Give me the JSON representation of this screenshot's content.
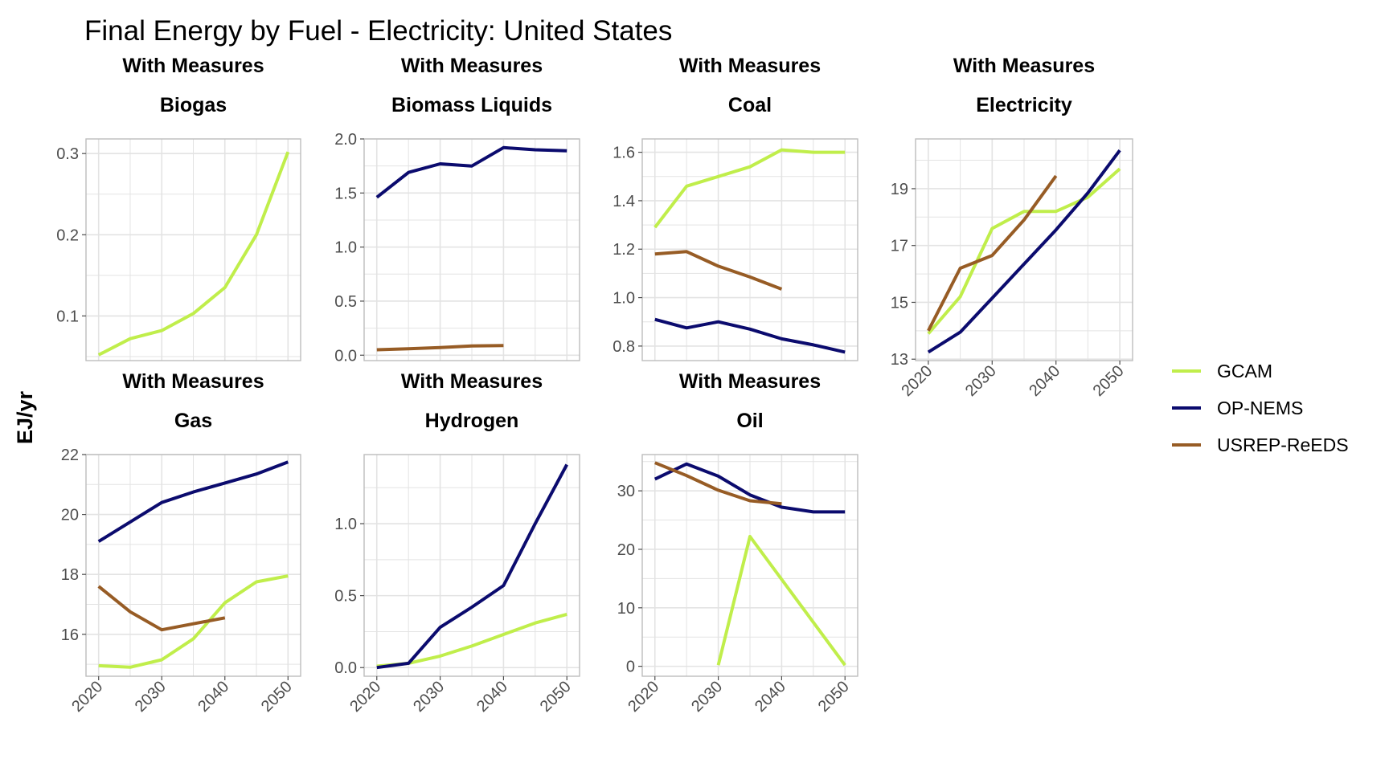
{
  "title": "Final Energy by Fuel - Electricity: United States",
  "colors": {
    "GCAM": "#c0ee4b",
    "OP-NEMS": "#0b0b6e",
    "USREP-ReEDS": "#975c25",
    "grid": "#e3e3e3",
    "panel_border": "#bdbdbd",
    "tick_text": "#4d4d4d"
  },
  "chart_data": {
    "type": "line",
    "title": "Final Energy by Fuel - Electricity: United States",
    "ylabel": "EJ/yr",
    "xlabel": "",
    "grid": true,
    "legend": {
      "placement": "right",
      "entries": [
        "GCAM",
        "OP-NEMS",
        "USREP-ReEDS"
      ]
    },
    "panels": [
      {
        "strip_top": "With Measures",
        "strip_bottom": "Biogas",
        "xlim": [
          2018,
          2052
        ],
        "ylim": [
          0.045,
          0.318
        ],
        "yticks": [
          0.1,
          0.2,
          0.3
        ],
        "ytick_labels": [
          "0.1",
          "0.2",
          "0.3"
        ],
        "show_x_ticks": false,
        "series": [
          {
            "name": "GCAM",
            "x": [
              2020,
              2025,
              2030,
              2035,
              2040,
              2045,
              2050
            ],
            "y": [
              0.052,
              0.072,
              0.082,
              0.103,
              0.135,
              0.2,
              0.302
            ]
          }
        ]
      },
      {
        "strip_top": "With Measures",
        "strip_bottom": "Biomass Liquids",
        "xlim": [
          2018,
          2052
        ],
        "ylim": [
          -0.05,
          2.0
        ],
        "yticks": [
          0.0,
          0.5,
          1.0,
          1.5,
          2.0
        ],
        "ytick_labels": [
          "0.0",
          "0.5",
          "1.0",
          "1.5",
          "2.0"
        ],
        "show_x_ticks": false,
        "series": [
          {
            "name": "OP-NEMS",
            "x": [
              2020,
              2025,
              2030,
              2035,
              2040,
              2045,
              2050
            ],
            "y": [
              1.46,
              1.69,
              1.77,
              1.75,
              1.92,
              1.9,
              1.89
            ]
          },
          {
            "name": "USREP-ReEDS",
            "x": [
              2020,
              2025,
              2030,
              2035,
              2040
            ],
            "y": [
              0.05,
              0.06,
              0.07,
              0.085,
              0.09
            ]
          }
        ]
      },
      {
        "strip_top": "With Measures",
        "strip_bottom": "Coal",
        "xlim": [
          2018,
          2052
        ],
        "ylim": [
          0.74,
          1.655
        ],
        "yticks": [
          0.8,
          1.0,
          1.2,
          1.4,
          1.6
        ],
        "ytick_labels": [
          "0.8",
          "1.0",
          "1.2",
          "1.4",
          "1.6"
        ],
        "show_x_ticks": false,
        "series": [
          {
            "name": "GCAM",
            "x": [
              2020,
              2025,
              2030,
              2035,
              2040,
              2045,
              2050
            ],
            "y": [
              1.29,
              1.46,
              1.5,
              1.54,
              1.61,
              1.6,
              1.6
            ]
          },
          {
            "name": "OP-NEMS",
            "x": [
              2020,
              2025,
              2030,
              2035,
              2040,
              2045,
              2050
            ],
            "y": [
              0.91,
              0.875,
              0.9,
              0.87,
              0.83,
              0.805,
              0.775
            ]
          },
          {
            "name": "USREP-ReEDS",
            "x": [
              2020,
              2025,
              2030,
              2035,
              2040
            ],
            "y": [
              1.18,
              1.19,
              1.13,
              1.085,
              1.035
            ]
          }
        ]
      },
      {
        "strip_top": "With Measures",
        "strip_bottom": "Electricity",
        "xlim": [
          2018,
          2052
        ],
        "ylim": [
          12.95,
          20.75
        ],
        "yticks": [
          13,
          15,
          17,
          19
        ],
        "ytick_labels": [
          "13",
          "15",
          "17",
          "19"
        ],
        "show_x_ticks": true,
        "xticks": [
          2020,
          2030,
          2040,
          2050
        ],
        "xtick_labels": [
          "2020",
          "2030",
          "2040",
          "2050"
        ],
        "series": [
          {
            "name": "GCAM",
            "x": [
              2020,
              2025,
              2030,
              2035,
              2040,
              2045,
              2050
            ],
            "y": [
              13.9,
              15.2,
              17.6,
              18.2,
              18.2,
              18.7,
              19.7
            ]
          },
          {
            "name": "OP-NEMS",
            "x": [
              2020,
              2025,
              2030,
              2035,
              2040,
              2045,
              2050
            ],
            "y": [
              13.25,
              13.95,
              15.15,
              16.35,
              17.55,
              18.85,
              20.35
            ]
          },
          {
            "name": "USREP-ReEDS",
            "x": [
              2020,
              2025,
              2030,
              2035,
              2040
            ],
            "y": [
              14.0,
              16.2,
              16.65,
              17.9,
              19.45
            ]
          }
        ]
      },
      {
        "strip_top": "With Measures",
        "strip_bottom": "Gas",
        "xlim": [
          2018,
          2052
        ],
        "ylim": [
          14.6,
          22.0
        ],
        "yticks": [
          16,
          18,
          20,
          22
        ],
        "ytick_labels": [
          "16",
          "18",
          "20",
          "22"
        ],
        "show_x_ticks": true,
        "xticks": [
          2020,
          2030,
          2040,
          2050
        ],
        "xtick_labels": [
          "2020",
          "2030",
          "2040",
          "2050"
        ],
        "series": [
          {
            "name": "GCAM",
            "x": [
              2020,
              2025,
              2030,
              2035,
              2040,
              2045,
              2050
            ],
            "y": [
              14.95,
              14.9,
              15.15,
              15.85,
              17.05,
              17.75,
              17.95
            ]
          },
          {
            "name": "OP-NEMS",
            "x": [
              2020,
              2025,
              2030,
              2035,
              2040,
              2045,
              2050
            ],
            "y": [
              19.1,
              19.75,
              20.4,
              20.75,
              21.05,
              21.35,
              21.75
            ]
          },
          {
            "name": "USREP-ReEDS",
            "x": [
              2020,
              2025,
              2030,
              2035,
              2040
            ],
            "y": [
              17.6,
              16.75,
              16.15,
              16.35,
              16.55
            ]
          }
        ]
      },
      {
        "strip_top": "With Measures",
        "strip_bottom": "Hydrogen",
        "xlim": [
          2018,
          2052
        ],
        "ylim": [
          -0.06,
          1.48
        ],
        "yticks": [
          0.0,
          0.5,
          1.0
        ],
        "ytick_labels": [
          "0.0",
          "0.5",
          "1.0"
        ],
        "show_x_ticks": true,
        "xticks": [
          2020,
          2030,
          2040,
          2050
        ],
        "xtick_labels": [
          "2020",
          "2030",
          "2040",
          "2050"
        ],
        "series": [
          {
            "name": "GCAM",
            "x": [
              2020,
              2025,
              2030,
              2035,
              2040,
              2045,
              2050
            ],
            "y": [
              0.01,
              0.03,
              0.08,
              0.15,
              0.23,
              0.31,
              0.37
            ]
          },
          {
            "name": "OP-NEMS",
            "x": [
              2020,
              2025,
              2030,
              2035,
              2040,
              2045,
              2050
            ],
            "y": [
              0.0,
              0.03,
              0.28,
              0.42,
              0.57,
              1.0,
              1.41
            ]
          }
        ]
      },
      {
        "strip_top": "With Measures",
        "strip_bottom": "Oil",
        "xlim": [
          2018,
          2052
        ],
        "ylim": [
          -1.7,
          36.2
        ],
        "yticks": [
          0,
          10,
          20,
          30
        ],
        "ytick_labels": [
          "0",
          "10",
          "20",
          "30"
        ],
        "show_x_ticks": true,
        "xticks": [
          2020,
          2030,
          2040,
          2050
        ],
        "xtick_labels": [
          "2020",
          "2030",
          "2040",
          "2050"
        ],
        "series": [
          {
            "name": "GCAM",
            "x": [
              2030,
              2035,
              2050
            ],
            "y": [
              0.2,
              22.2,
              0.2
            ]
          },
          {
            "name": "OP-NEMS",
            "x": [
              2020,
              2025,
              2030,
              2035,
              2040,
              2045,
              2050
            ],
            "y": [
              32.0,
              34.6,
              32.5,
              29.3,
              27.2,
              26.4,
              26.4
            ]
          },
          {
            "name": "USREP-ReEDS",
            "x": [
              2020,
              2025,
              2030,
              2035,
              2040
            ],
            "y": [
              34.8,
              32.6,
              30.1,
              28.3,
              27.8
            ]
          }
        ]
      }
    ]
  }
}
